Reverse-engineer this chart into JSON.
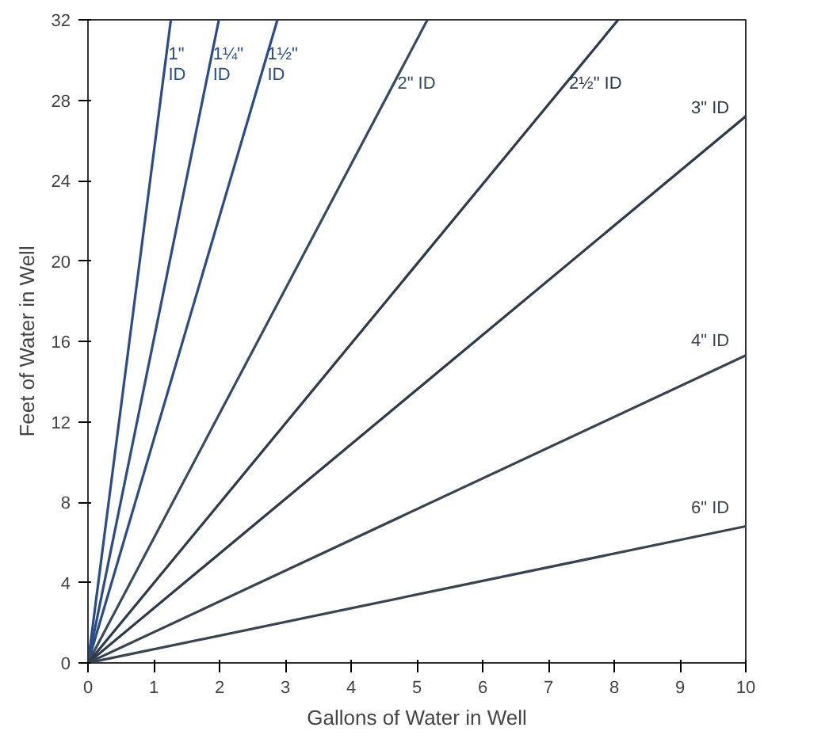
{
  "chart_data": {
    "type": "line",
    "xlabel": "Gallons of Water in Well",
    "ylabel": "Feet of Water in Well",
    "xlim": [
      0,
      10
    ],
    "ylim": [
      0,
      32
    ],
    "xticks": [
      0,
      1,
      2,
      3,
      4,
      5,
      6,
      7,
      8,
      9,
      10
    ],
    "yticks": [
      0,
      4,
      8,
      12,
      16,
      20,
      24,
      28,
      32
    ],
    "grid": false,
    "marker": "none",
    "line_style": "solid",
    "series": [
      {
        "name": "1\" ID",
        "color": "#2b4c86",
        "x": [
          0,
          1.26
        ],
        "values": [
          0,
          32
        ]
      },
      {
        "name": "1¼\" ID",
        "color": "#2b4c86",
        "x": [
          0,
          1.99
        ],
        "values": [
          0,
          32
        ]
      },
      {
        "name": "1½\" ID",
        "color": "#2b4c86",
        "x": [
          0,
          2.88
        ],
        "values": [
          0,
          32
        ]
      },
      {
        "name": "2\" ID",
        "color": "#3a4a5e",
        "x": [
          0,
          5.16
        ],
        "values": [
          0,
          32
        ]
      },
      {
        "name": "2½\" ID",
        "color": "#2f3a48",
        "x": [
          0,
          8.06
        ],
        "values": [
          0,
          32
        ]
      },
      {
        "name": "3\" ID",
        "color": "#2f3a48",
        "x": [
          0,
          10
        ],
        "values": [
          0,
          27.2
        ]
      },
      {
        "name": "4\" ID",
        "color": "#3a4450",
        "x": [
          0,
          10
        ],
        "values": [
          0,
          15.3
        ]
      },
      {
        "name": "6\" ID",
        "color": "#3a4450",
        "x": [
          0,
          10
        ],
        "values": [
          0,
          6.8
        ]
      }
    ]
  }
}
